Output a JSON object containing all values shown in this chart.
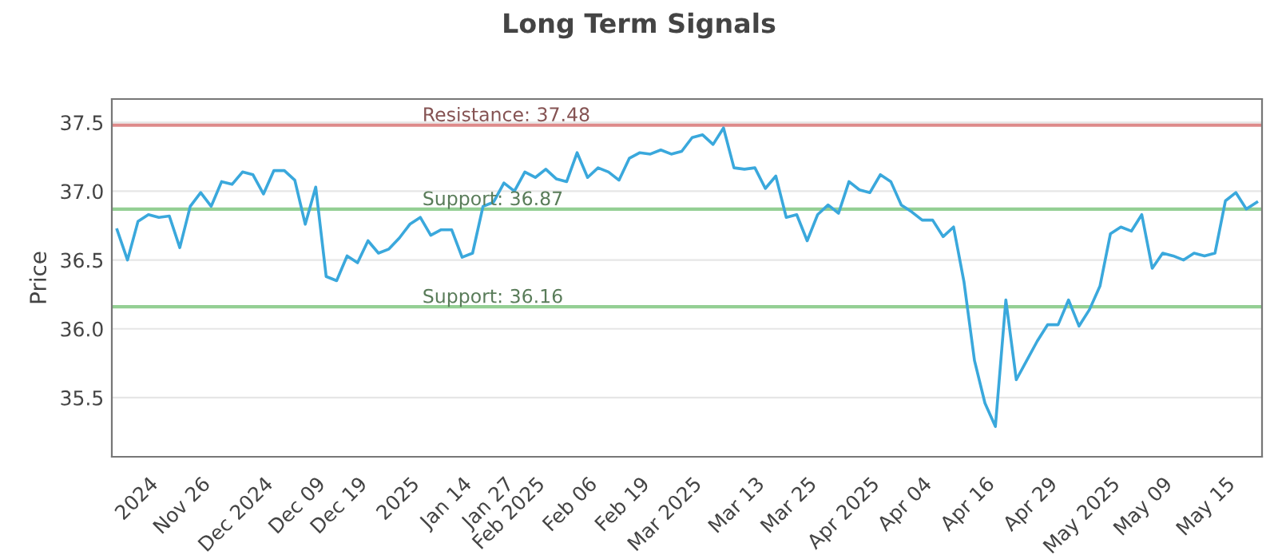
{
  "chart_data": {
    "type": "line",
    "title": "Long Term Signals",
    "ylabel": "Price",
    "categories": [
      null,
      null,
      null,
      "2024",
      null,
      null,
      null,
      null,
      "Nov 26",
      null,
      null,
      null,
      null,
      null,
      "Dec 2024",
      null,
      null,
      null,
      null,
      "Dec 09",
      null,
      null,
      null,
      "Dec 19",
      null,
      null,
      null,
      null,
      "2025",
      null,
      null,
      null,
      null,
      "Jan 14",
      null,
      null,
      null,
      "Jan 27",
      null,
      null,
      "Feb 2025",
      null,
      null,
      null,
      null,
      "Feb 06",
      null,
      null,
      null,
      null,
      "Feb 19",
      null,
      null,
      null,
      null,
      "Mar 2025",
      null,
      null,
      null,
      null,
      null,
      "Mar 13",
      null,
      null,
      null,
      null,
      "Mar 25",
      null,
      null,
      null,
      null,
      null,
      "Apr 2025",
      null,
      null,
      null,
      null,
      "Apr 04",
      null,
      null,
      null,
      null,
      null,
      "Apr 16",
      null,
      null,
      null,
      null,
      null,
      "Apr 29",
      null,
      null,
      null,
      null,
      null,
      "May 2025",
      null,
      null,
      null,
      null,
      "May 09",
      null,
      null,
      null,
      null,
      null,
      "May 15",
      null,
      null,
      null
    ],
    "series": [
      {
        "color": "#3aa8dc",
        "values": [
          36.72,
          36.5,
          36.78,
          36.83,
          36.81,
          36.82,
          36.59,
          36.89,
          36.99,
          36.89,
          37.07,
          37.05,
          37.14,
          37.12,
          36.98,
          37.15,
          37.15,
          37.08,
          36.76,
          37.03,
          36.38,
          36.35,
          36.53,
          36.48,
          36.64,
          36.55,
          36.58,
          36.66,
          36.76,
          36.81,
          36.68,
          36.72,
          36.72,
          36.52,
          36.55,
          36.89,
          36.92,
          37.06,
          37.0,
          37.14,
          37.1,
          37.16,
          37.09,
          37.07,
          37.28,
          37.1,
          37.17,
          37.14,
          37.08,
          37.24,
          37.28,
          37.27,
          37.3,
          37.27,
          37.29,
          37.39,
          37.41,
          37.34,
          37.46,
          37.17,
          37.16,
          37.17,
          37.02,
          37.11,
          36.81,
          36.83,
          36.64,
          36.83,
          36.9,
          36.84,
          37.07,
          37.01,
          36.99,
          37.12,
          37.07,
          36.9,
          36.85,
          36.79,
          36.79,
          36.67,
          36.74,
          36.34,
          35.77,
          35.46,
          35.29,
          36.21,
          35.63,
          35.77,
          35.91,
          36.03,
          36.03,
          36.21,
          36.02,
          36.14,
          36.31,
          36.69,
          36.74,
          36.71,
          36.83,
          36.44,
          36.55,
          36.53,
          36.5,
          36.55,
          36.53,
          36.55,
          36.93,
          36.99,
          36.87,
          36.92
        ]
      }
    ],
    "ylim": [
      35.07,
      37.67
    ],
    "yticks": [
      {
        "value": 35.5,
        "label": "35.5"
      },
      {
        "value": 36.0,
        "label": "36.0"
      },
      {
        "value": 36.5,
        "label": "36.5"
      },
      {
        "value": 37.0,
        "label": "37.0"
      },
      {
        "value": 37.5,
        "label": "37.5"
      }
    ],
    "grid": "y",
    "line_style": "solid",
    "marker": "none",
    "ref_lines": [
      {
        "axis": "y",
        "value": 37.48,
        "label": "Resistance: 37.48",
        "color": "#de8a8a"
      },
      {
        "axis": "y",
        "value": 36.87,
        "label": "Support: 36.87",
        "color": "#94cf94"
      },
      {
        "axis": "y",
        "value": 36.16,
        "label": "Support: 36.16",
        "color": "#94cf94"
      }
    ]
  }
}
